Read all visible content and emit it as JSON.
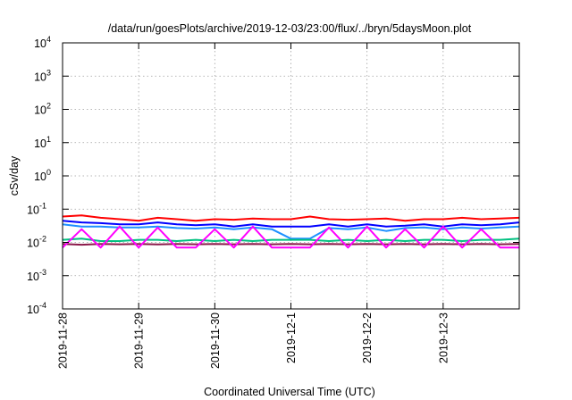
{
  "chart_data": {
    "type": "line",
    "title": "/data/run/goesPlots/archive/2019-12-03/23:00/flux/../bryn/5daysMoon.plot",
    "xlabel": "Coordinated Universal Time (UTC)",
    "ylabel": "cSv/day",
    "y_scale": "log",
    "ylim": [
      0.0001,
      10000
    ],
    "xlim": [
      "2019-11-28T00:00",
      "2019-12-04T00:00"
    ],
    "grid": true,
    "legend": "none",
    "x_ticks": [
      "2019-11-28",
      "2019-11-29",
      "2019-11-30",
      "2019-12-1",
      "2019-12-2",
      "2019-12-3"
    ],
    "y_ticks": [
      {
        "base": "10",
        "exp": "-4"
      },
      {
        "base": "10",
        "exp": "-3"
      },
      {
        "base": "10",
        "exp": "-2"
      },
      {
        "base": "10",
        "exp": "-1"
      },
      {
        "base": "10",
        "exp": "0"
      },
      {
        "base": "10",
        "exp": "1"
      },
      {
        "base": "10",
        "exp": "2"
      },
      {
        "base": "10",
        "exp": "3"
      },
      {
        "base": "10",
        "exp": "4"
      }
    ],
    "x": [
      "2019-11-28T00:00",
      "2019-11-28T06:00",
      "2019-11-28T12:00",
      "2019-11-28T18:00",
      "2019-11-29T00:00",
      "2019-11-29T06:00",
      "2019-11-29T12:00",
      "2019-11-29T18:00",
      "2019-11-30T00:00",
      "2019-11-30T06:00",
      "2019-11-30T12:00",
      "2019-11-30T18:00",
      "2019-12-01T00:00",
      "2019-12-01T06:00",
      "2019-12-01T12:00",
      "2019-12-01T18:00",
      "2019-12-02T00:00",
      "2019-12-02T06:00",
      "2019-12-02T12:00",
      "2019-12-02T18:00",
      "2019-12-03T00:00",
      "2019-12-03T06:00",
      "2019-12-03T12:00",
      "2019-12-03T18:00",
      "2019-12-04T00:00"
    ],
    "series": [
      {
        "color": "#ff0000",
        "values": [
          0.06,
          0.065,
          0.055,
          0.05,
          0.045,
          0.055,
          0.05,
          0.045,
          0.05,
          0.048,
          0.052,
          0.05,
          0.05,
          0.06,
          0.05,
          0.048,
          0.05,
          0.052,
          0.045,
          0.05,
          0.05,
          0.055,
          0.05,
          0.052,
          0.055
        ]
      },
      {
        "color": "#0000ff",
        "values": [
          0.045,
          0.04,
          0.038,
          0.035,
          0.035,
          0.04,
          0.035,
          0.033,
          0.035,
          0.03,
          0.035,
          0.03,
          0.03,
          0.03,
          0.035,
          0.03,
          0.035,
          0.03,
          0.032,
          0.035,
          0.03,
          0.035,
          0.033,
          0.035,
          0.04
        ]
      },
      {
        "color": "#1e90ff",
        "values": [
          0.035,
          0.03,
          0.03,
          0.028,
          0.028,
          0.03,
          0.027,
          0.026,
          0.028,
          0.025,
          0.028,
          0.025,
          0.013,
          0.013,
          0.027,
          0.025,
          0.028,
          0.022,
          0.027,
          0.028,
          0.025,
          0.028,
          0.026,
          0.028,
          0.03
        ]
      },
      {
        "color": "#00c080",
        "values": [
          0.012,
          0.013,
          0.011,
          0.011,
          0.012,
          0.012,
          0.011,
          0.012,
          0.011,
          0.012,
          0.011,
          0.012,
          0.012,
          0.012,
          0.011,
          0.012,
          0.011,
          0.012,
          0.011,
          0.012,
          0.012,
          0.011,
          0.012,
          0.012,
          0.013
        ]
      },
      {
        "color": "#8b1a4a",
        "values": [
          0.009,
          0.0085,
          0.009,
          0.0088,
          0.009,
          0.0087,
          0.009,
          0.0088,
          0.009,
          0.0088,
          0.009,
          0.0088,
          0.009,
          0.0088,
          0.009,
          0.0088,
          0.009,
          0.0088,
          0.009,
          0.0088,
          0.009,
          0.0088,
          0.009,
          0.0088,
          0.009
        ]
      },
      {
        "color": "#ff00ff",
        "values": [
          0.007,
          0.025,
          0.007,
          0.03,
          0.007,
          0.028,
          0.007,
          0.007,
          0.025,
          0.007,
          0.03,
          0.007,
          0.007,
          0.007,
          0.028,
          0.007,
          0.03,
          0.007,
          0.025,
          0.007,
          0.03,
          0.007,
          0.025,
          0.007,
          0.007
        ]
      }
    ]
  }
}
